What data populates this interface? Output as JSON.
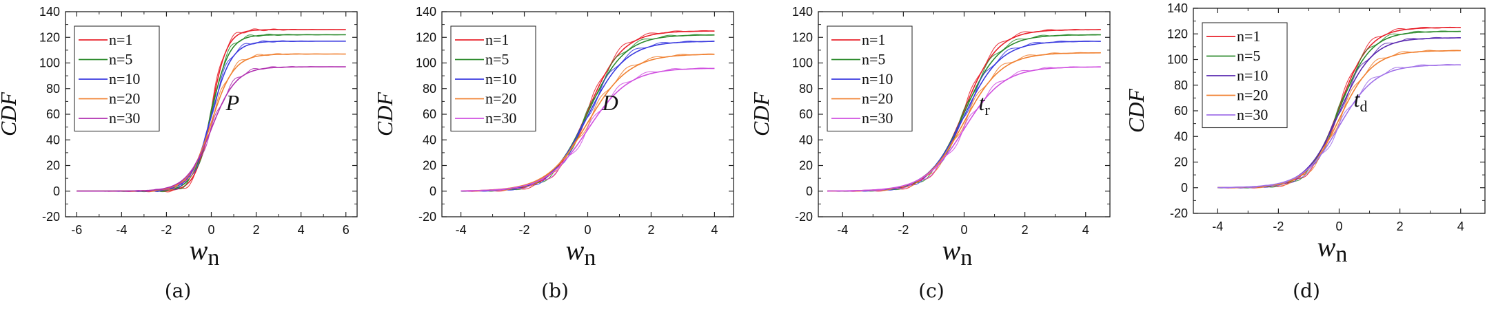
{
  "chart_data": [
    {
      "type": "line",
      "panel_caption": "(a)",
      "annotation": {
        "main": "P",
        "sub": ""
      },
      "xlabel": {
        "main": "w",
        "sub": "n"
      },
      "ylabel": "CDF",
      "xlim": [
        -6.5,
        6.5
      ],
      "ylim": [
        -20,
        140
      ],
      "xticks": [
        -6,
        -4,
        -2,
        0,
        2,
        4,
        6
      ],
      "xtick_labels": [
        "-6",
        "-4",
        "-2",
        "0",
        "2",
        "4",
        "6"
      ],
      "yticks": [
        -20,
        0,
        20,
        40,
        60,
        80,
        100,
        120,
        140
      ],
      "ytick_labels": [
        "-20",
        "0",
        "20",
        "40",
        "60",
        "80",
        "100",
        "120",
        "140"
      ],
      "x_range": [
        -6,
        6
      ],
      "legend": {
        "position": "top-left"
      },
      "series": [
        {
          "name": "n=1",
          "color": "#e8202a",
          "plateau": 126,
          "scale": 0.35
        },
        {
          "name": "n=5",
          "color": "#2b8a2b",
          "plateau": 122,
          "scale": 0.4
        },
        {
          "name": "n=10",
          "color": "#3a3adf",
          "plateau": 117,
          "scale": 0.45
        },
        {
          "name": "n=20",
          "color": "#f08030",
          "plateau": 107,
          "scale": 0.5
        },
        {
          "name": "n=30",
          "color": "#b030b0",
          "plateau": 97,
          "scale": 0.55
        }
      ]
    },
    {
      "type": "line",
      "panel_caption": "(b)",
      "annotation": {
        "main": "D",
        "sub": ""
      },
      "xlabel": {
        "main": "w",
        "sub": "n"
      },
      "ylabel": "CDF",
      "xlim": [
        -4.6,
        4.6
      ],
      "ylim": [
        -20,
        140
      ],
      "xticks": [
        -4,
        -2,
        0,
        2,
        4
      ],
      "xtick_labels": [
        "-4",
        "-2",
        "0",
        "2",
        "4"
      ],
      "yticks": [
        -20,
        0,
        20,
        40,
        60,
        80,
        100,
        120,
        140
      ],
      "ytick_labels": [
        "-20",
        "0",
        "20",
        "40",
        "60",
        "80",
        "100",
        "120",
        "140"
      ],
      "x_range": [
        -4,
        4
      ],
      "legend": {
        "position": "top-left"
      },
      "series": [
        {
          "name": "n=1",
          "color": "#e8202a",
          "plateau": 125,
          "scale": 0.55
        },
        {
          "name": "n=5",
          "color": "#2b8a2b",
          "plateau": 122,
          "scale": 0.58
        },
        {
          "name": "n=10",
          "color": "#3a3adf",
          "plateau": 117,
          "scale": 0.6
        },
        {
          "name": "n=20",
          "color": "#f08030",
          "plateau": 107,
          "scale": 0.65
        },
        {
          "name": "n=30",
          "color": "#d050e0",
          "plateau": 96,
          "scale": 0.65
        }
      ]
    },
    {
      "type": "line",
      "panel_caption": "(c)",
      "annotation": {
        "main": "t",
        "sub": "r"
      },
      "xlabel": {
        "main": "w",
        "sub": "n"
      },
      "ylabel": "CDF",
      "xlim": [
        -4.8,
        4.8
      ],
      "ylim": [
        -20,
        140
      ],
      "xticks": [
        -4,
        -2,
        0,
        2,
        4
      ],
      "xtick_labels": [
        "-4",
        "-2",
        "0",
        "2",
        "4"
      ],
      "yticks": [
        -20,
        0,
        20,
        40,
        60,
        80,
        100,
        120,
        140
      ],
      "ytick_labels": [
        "-20",
        "0",
        "20",
        "40",
        "60",
        "80",
        "100",
        "120",
        "140"
      ],
      "x_range": [
        -4.5,
        4.5
      ],
      "legend": {
        "position": "top-left"
      },
      "series": [
        {
          "name": "n=1",
          "color": "#e8202a",
          "plateau": 126,
          "scale": 0.55
        },
        {
          "name": "n=5",
          "color": "#2b8a2b",
          "plateau": 122,
          "scale": 0.58
        },
        {
          "name": "n=10",
          "color": "#3a3adf",
          "plateau": 117,
          "scale": 0.6
        },
        {
          "name": "n=20",
          "color": "#f08030",
          "plateau": 108,
          "scale": 0.62
        },
        {
          "name": "n=30",
          "color": "#d050e0",
          "plateau": 97,
          "scale": 0.65
        }
      ]
    },
    {
      "type": "line",
      "panel_caption": "(d)",
      "annotation": {
        "main": "t",
        "sub": "d"
      },
      "xlabel": {
        "main": "w",
        "sub": "n"
      },
      "ylabel": "CDF",
      "xlim": [
        -4.8,
        4.8
      ],
      "ylim": [
        -20,
        140
      ],
      "xticks": [
        -4,
        -2,
        0,
        2,
        4
      ],
      "xtick_labels": [
        "-4",
        "-2",
        "0",
        "2",
        "4"
      ],
      "yticks": [
        -20,
        0,
        20,
        40,
        60,
        80,
        100,
        120,
        140
      ],
      "ytick_labels": [
        "-20",
        "0",
        "20",
        "40",
        "60",
        "80",
        "100",
        "120",
        "140"
      ],
      "x_range": [
        -4,
        4
      ],
      "legend": {
        "position": "top-left"
      },
      "series": [
        {
          "name": "n=1",
          "color": "#e8202a",
          "plateau": 125,
          "scale": 0.5
        },
        {
          "name": "n=5",
          "color": "#2b8a2b",
          "plateau": 122,
          "scale": 0.52
        },
        {
          "name": "n=10",
          "color": "#5a2ab0",
          "plateau": 117,
          "scale": 0.55
        },
        {
          "name": "n=20",
          "color": "#f08030",
          "plateau": 107,
          "scale": 0.55
        },
        {
          "name": "n=30",
          "color": "#a070e8",
          "plateau": 96,
          "scale": 0.6
        }
      ]
    }
  ]
}
